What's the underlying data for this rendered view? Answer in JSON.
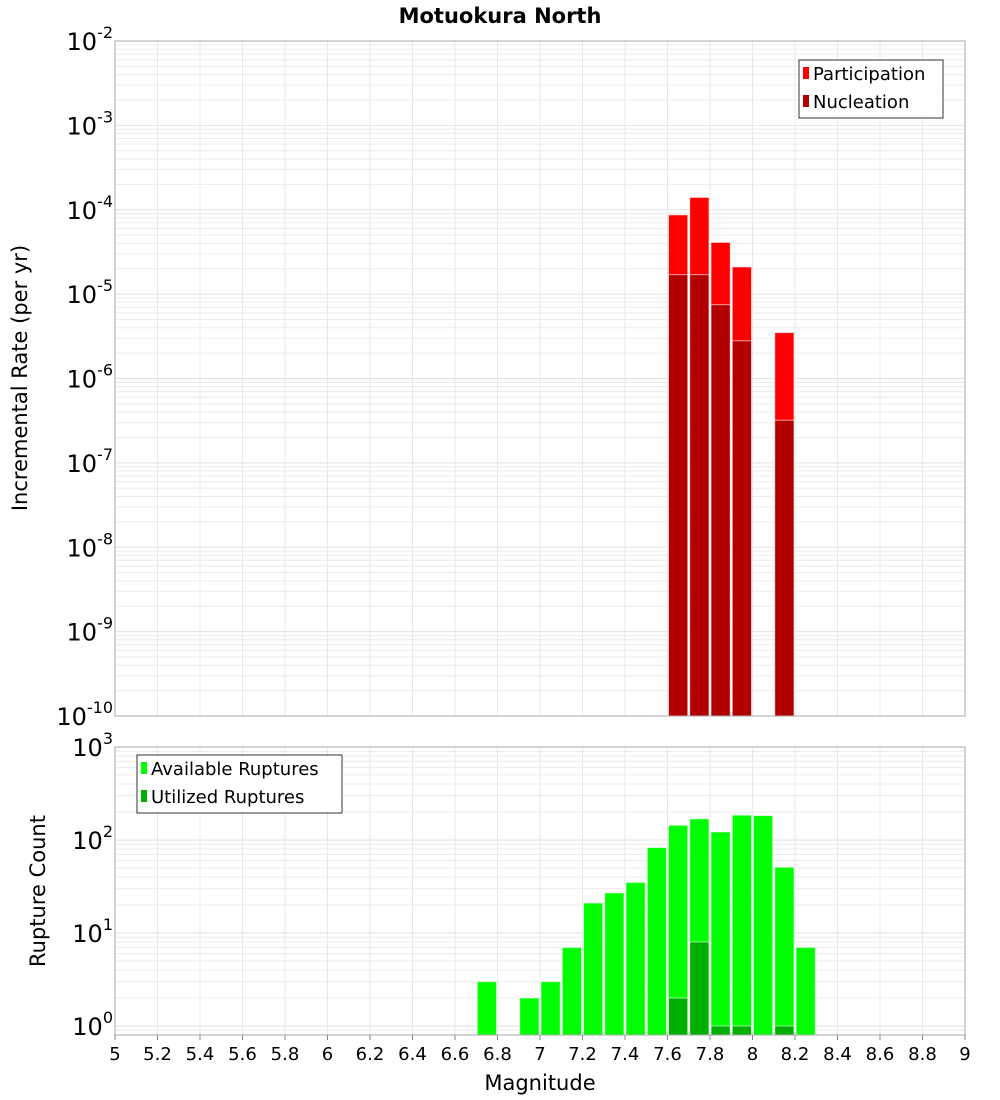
{
  "chart_data": [
    {
      "type": "bar",
      "title": "Motuokura North",
      "xlabel": "Magnitude",
      "ylabel": "Incremental Rate (per yr)",
      "yscale": "log",
      "ylim": [
        1e-10,
        0.01
      ],
      "xlim": [
        5,
        9
      ],
      "bin_width": 0.1,
      "grid": true,
      "legend_position": "top-right",
      "ytick_exponents": [
        "-10",
        "-9",
        "-8",
        "-7",
        "-6",
        "-5",
        "-4",
        "-3",
        "-2"
      ],
      "series": [
        {
          "name": "Participation",
          "color": "#ff0000",
          "x": [
            7.65,
            7.75,
            7.85,
            7.95,
            8.15
          ],
          "values": [
            8.7e-05,
            0.00014,
            4.1e-05,
            2.1e-05,
            3.5e-06
          ]
        },
        {
          "name": "Nucleation",
          "color": "#b20000",
          "x": [
            7.65,
            7.75,
            7.85,
            7.95,
            8.15
          ],
          "values": [
            1.7e-05,
            1.7e-05,
            7.5e-06,
            2.8e-06,
            3.2e-07
          ]
        }
      ]
    },
    {
      "type": "bar",
      "xlabel": "Magnitude",
      "ylabel": "Rupture Count",
      "yscale": "log",
      "ylim": [
        0.8,
        1000
      ],
      "xlim": [
        5,
        9
      ],
      "bin_width": 0.1,
      "grid": true,
      "legend_position": "top-left",
      "ytick_exponents": [
        "0",
        "1",
        "2",
        "3"
      ],
      "xticks": [
        "5",
        "5.2",
        "5.4",
        "5.6",
        "5.8",
        "6",
        "6.2",
        "6.4",
        "6.6",
        "6.8",
        "7",
        "7.2",
        "7.4",
        "7.6",
        "7.8",
        "8",
        "8.2",
        "8.4",
        "8.6",
        "8.8",
        "9"
      ],
      "series": [
        {
          "name": "Available Ruptures",
          "color": "#00ff00",
          "x": [
            6.75,
            6.95,
            7.05,
            7.15,
            7.25,
            7.35,
            7.45,
            7.55,
            7.65,
            7.75,
            7.85,
            7.95,
            8.05,
            8.15,
            8.25
          ],
          "values": [
            3,
            2,
            3,
            7,
            21,
            27,
            35,
            83,
            144,
            169,
            122,
            185,
            183,
            51,
            7
          ]
        },
        {
          "name": "Utilized Ruptures",
          "color": "#00b000",
          "x": [
            7.65,
            7.75,
            7.85,
            7.95,
            8.15
          ],
          "values": [
            2,
            8,
            1,
            1,
            1
          ]
        }
      ]
    }
  ]
}
